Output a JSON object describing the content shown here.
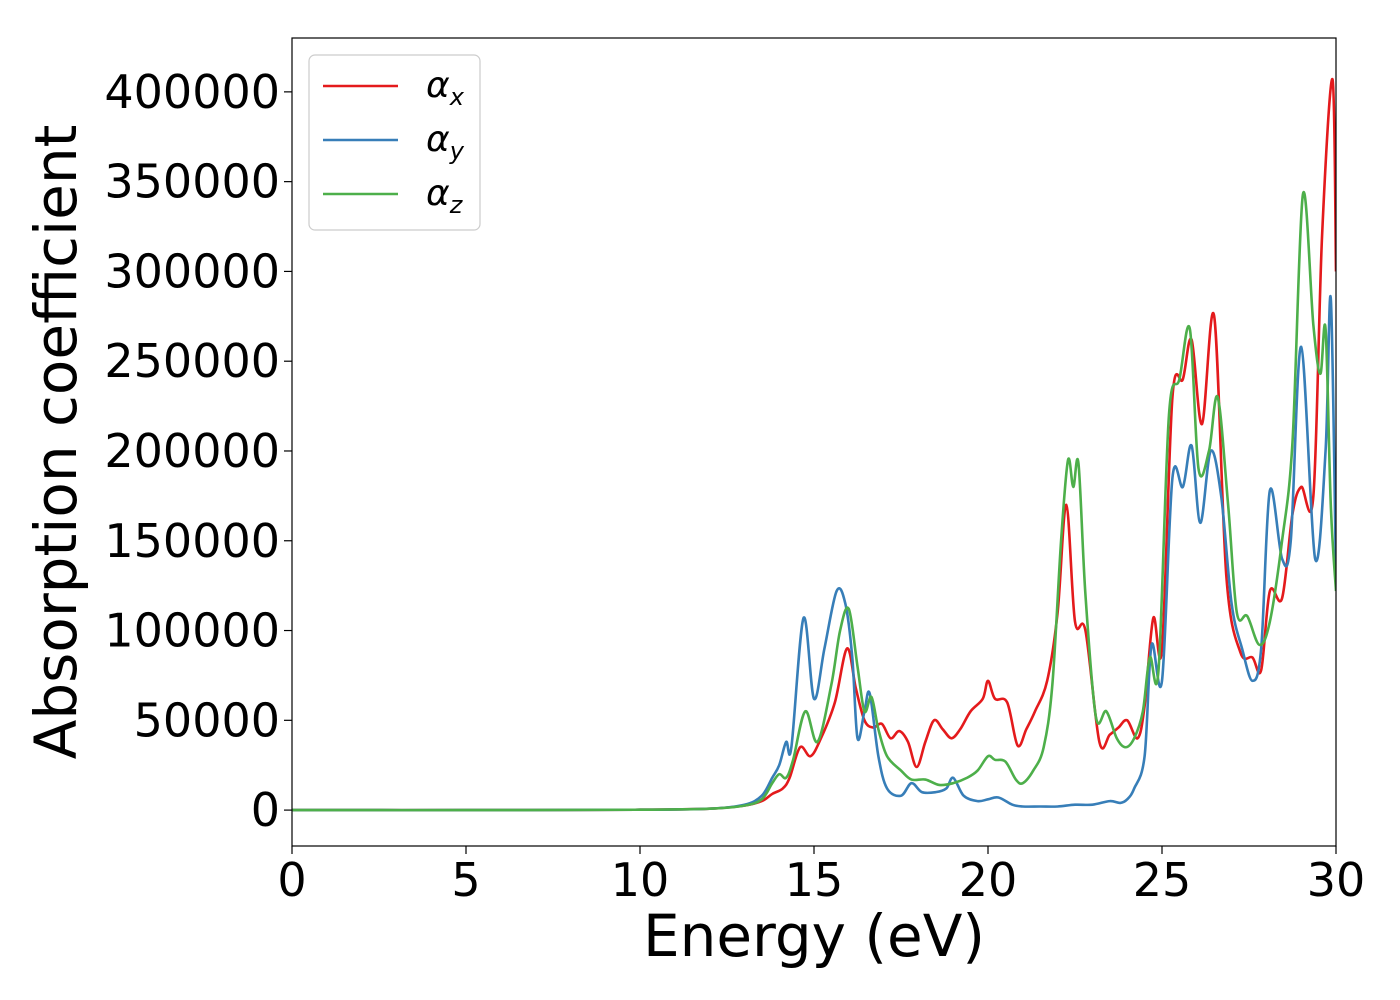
{
  "chart_data": {
    "type": "line",
    "title": "",
    "xlabel": "Energy (eV)",
    "ylabel": "Absorption coefficient",
    "xlim": [
      0,
      30
    ],
    "ylim": [
      -20000,
      430000
    ],
    "xticks": [
      "0",
      "5",
      "10",
      "15",
      "20",
      "25",
      "30"
    ],
    "yticks": [
      "0",
      "50000",
      "100000",
      "150000",
      "200000",
      "250000",
      "300000",
      "350000",
      "400000"
    ],
    "grid": false,
    "legend_position": "top-left",
    "series": [
      {
        "name": "α",
        "subscript": "x",
        "color": "#e41a1c",
        "x": [
          0,
          5,
          10,
          12,
          13,
          13.5,
          13.8,
          14.1,
          14.3,
          14.6,
          14.9,
          15.2,
          15.6,
          15.95,
          16.2,
          16.45,
          16.7,
          16.95,
          17.2,
          17.45,
          17.7,
          17.95,
          18.2,
          18.45,
          18.7,
          18.95,
          19.2,
          19.5,
          19.85,
          20.0,
          20.2,
          20.55,
          20.85,
          21.1,
          21.35,
          21.7,
          22.0,
          22.25,
          22.5,
          22.8,
          23.2,
          23.5,
          23.75,
          24.0,
          24.3,
          24.5,
          24.75,
          25.0,
          25.3,
          25.6,
          25.85,
          26.15,
          26.5,
          26.85,
          27.25,
          27.6,
          27.85,
          28.1,
          28.45,
          28.75,
          29.0,
          29.35,
          29.6,
          29.9,
          30.0
        ],
        "y": [
          0,
          0,
          200,
          800,
          2500,
          5000,
          9000,
          12000,
          18000,
          35000,
          30000,
          40000,
          60000,
          90000,
          68000,
          50000,
          46000,
          48000,
          40000,
          44000,
          38000,
          24000,
          38000,
          50000,
          45000,
          40000,
          45000,
          55000,
          62000,
          72000,
          62000,
          60000,
          36000,
          45000,
          55000,
          72000,
          110000,
          170000,
          105000,
          100000,
          38000,
          42000,
          46000,
          50000,
          40000,
          58000,
          107000,
          90000,
          230000,
          240000,
          262000,
          215000,
          275000,
          130000,
          88000,
          85000,
          78000,
          122000,
          118000,
          165000,
          180000,
          175000,
          320000,
          407000,
          300000
        ]
      },
      {
        "name": "α",
        "subscript": "y",
        "color": "#377eb8",
        "x": [
          0,
          5,
          10,
          12,
          13,
          13.5,
          13.8,
          14.0,
          14.2,
          14.35,
          14.7,
          15.0,
          15.3,
          15.65,
          15.9,
          16.1,
          16.25,
          16.45,
          16.6,
          16.85,
          17.1,
          17.5,
          17.8,
          18.1,
          18.5,
          18.8,
          19.0,
          19.3,
          19.7,
          20.0,
          20.3,
          20.7,
          21.0,
          21.5,
          22.0,
          22.5,
          23.0,
          23.5,
          23.8,
          24.0,
          24.2,
          24.5,
          24.7,
          25.0,
          25.3,
          25.6,
          25.85,
          26.1,
          26.4,
          26.7,
          27.0,
          27.3,
          27.6,
          27.85,
          28.1,
          28.45,
          28.7,
          29.0,
          29.4,
          29.7,
          29.85,
          30.0
        ],
        "y": [
          0,
          0,
          200,
          800,
          3000,
          8000,
          18000,
          25000,
          38000,
          35000,
          107000,
          62000,
          90000,
          122000,
          115000,
          85000,
          40000,
          55000,
          65000,
          30000,
          12000,
          8000,
          15000,
          10000,
          10000,
          12000,
          18000,
          8000,
          5000,
          6000,
          7000,
          3000,
          2000,
          2000,
          2000,
          3000,
          3000,
          5000,
          4000,
          6000,
          12000,
          30000,
          92000,
          72000,
          185000,
          180000,
          203000,
          160000,
          200000,
          175000,
          115000,
          90000,
          72000,
          90000,
          178000,
          140000,
          150000,
          258000,
          140000,
          200000,
          285000,
          130000
        ]
      },
      {
        "name": "α",
        "subscript": "z",
        "color": "#4daf4a",
        "x": [
          0,
          5,
          10,
          12,
          13,
          13.5,
          13.8,
          14.0,
          14.2,
          14.4,
          14.75,
          15.1,
          15.5,
          15.75,
          16.0,
          16.25,
          16.45,
          16.65,
          16.85,
          17.1,
          17.5,
          17.8,
          18.2,
          18.6,
          19.0,
          19.4,
          19.7,
          20.0,
          20.2,
          20.5,
          20.8,
          21.0,
          21.3,
          21.6,
          21.85,
          22.1,
          22.3,
          22.45,
          22.6,
          22.8,
          23.1,
          23.4,
          23.7,
          23.95,
          24.2,
          24.45,
          24.65,
          24.9,
          25.2,
          25.5,
          25.8,
          26.05,
          26.35,
          26.6,
          26.9,
          27.15,
          27.45,
          27.8,
          28.1,
          28.45,
          28.75,
          29.05,
          29.35,
          29.55,
          29.7,
          29.85,
          30.0
        ],
        "y": [
          0,
          0,
          200,
          800,
          2500,
          6000,
          15000,
          20000,
          18000,
          28000,
          55000,
          38000,
          70000,
          100000,
          112000,
          80000,
          55000,
          63000,
          45000,
          30000,
          22000,
          17000,
          17000,
          14000,
          15000,
          18000,
          22000,
          30000,
          28000,
          27000,
          17000,
          15000,
          22000,
          35000,
          70000,
          150000,
          195000,
          180000,
          193000,
          120000,
          52000,
          55000,
          40000,
          35000,
          40000,
          55000,
          85000,
          78000,
          220000,
          240000,
          268000,
          190000,
          200000,
          230000,
          170000,
          110000,
          108000,
          92000,
          105000,
          150000,
          205000,
          343000,
          270000,
          243000,
          268000,
          170000,
          122000
        ]
      }
    ]
  }
}
